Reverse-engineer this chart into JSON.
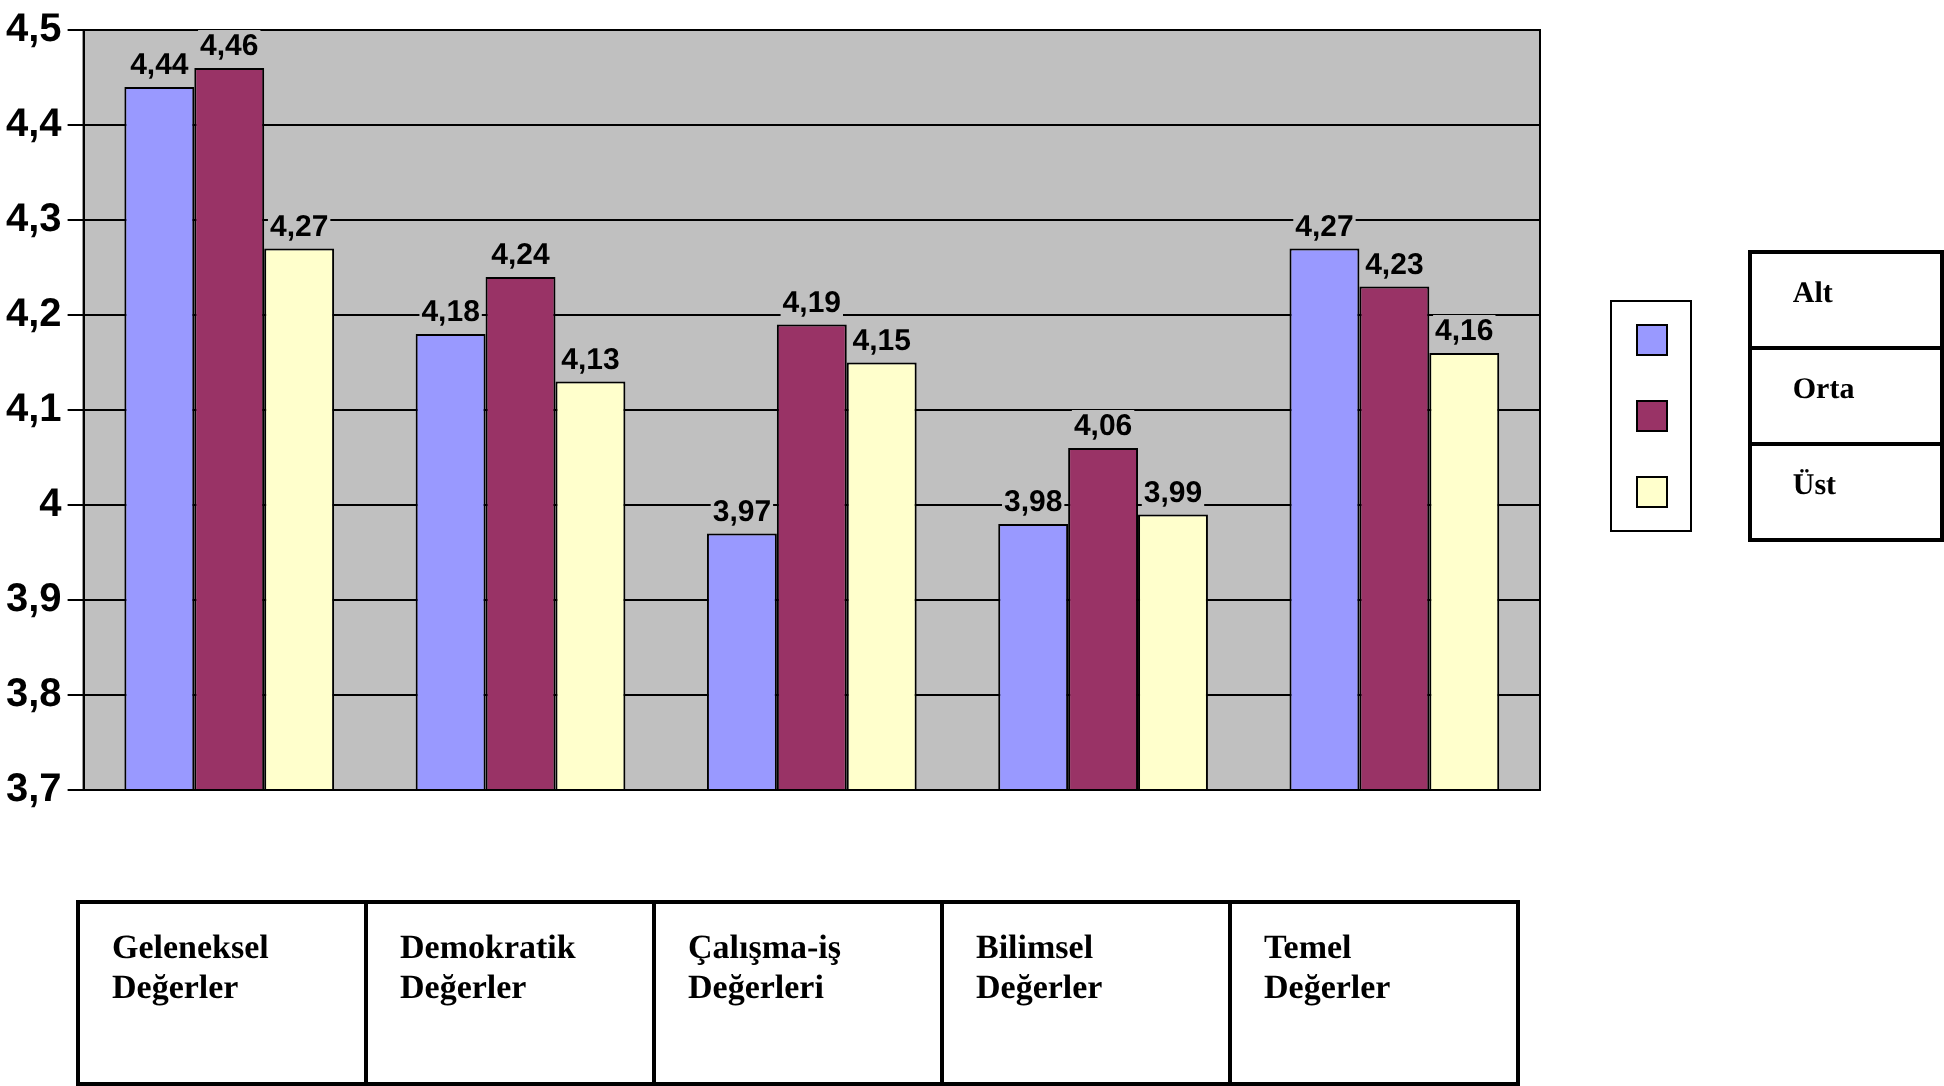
{
  "chart_data": {
    "type": "bar",
    "categories": [
      "Geleneksel Değerler",
      "Demokratik Değerler",
      "Çalışma-iş Değerleri",
      "Bilimsel Değerler",
      "Temel Değerler"
    ],
    "series": [
      {
        "name": "Alt",
        "color": "#9999ff",
        "values": [
          4.44,
          4.18,
          3.97,
          3.98,
          4.27
        ],
        "value_labels": [
          "4,44",
          "4,18",
          "3,97",
          "3,98",
          "4,27"
        ]
      },
      {
        "name": "Orta",
        "color": "#993366",
        "values": [
          4.46,
          4.24,
          4.19,
          4.06,
          4.23
        ],
        "value_labels": [
          "4,46",
          "4,24",
          "4,19",
          "4,06",
          "4,23"
        ]
      },
      {
        "name": "Üst",
        "color": "#ffffcc",
        "values": [
          4.27,
          4.13,
          4.15,
          3.99,
          4.16
        ],
        "value_labels": [
          "4,27",
          "4,13",
          "4,15",
          "3,99",
          "4,16"
        ]
      }
    ],
    "ylim": [
      3.7,
      4.5
    ],
    "yticks": [
      {
        "value": 3.7,
        "label": "3,7"
      },
      {
        "value": 3.8,
        "label": "3,8"
      },
      {
        "value": 3.9,
        "label": "3,9"
      },
      4,
      {
        "value": 4.1,
        "label": "4,1"
      },
      {
        "value": 4.2,
        "label": "4,2"
      },
      {
        "value": 4.3,
        "label": "4,3"
      },
      {
        "value": 4.4,
        "label": "4,4"
      },
      {
        "value": 4.5,
        "label": "4,5"
      }
    ],
    "grid": "y",
    "legend": "right"
  }
}
